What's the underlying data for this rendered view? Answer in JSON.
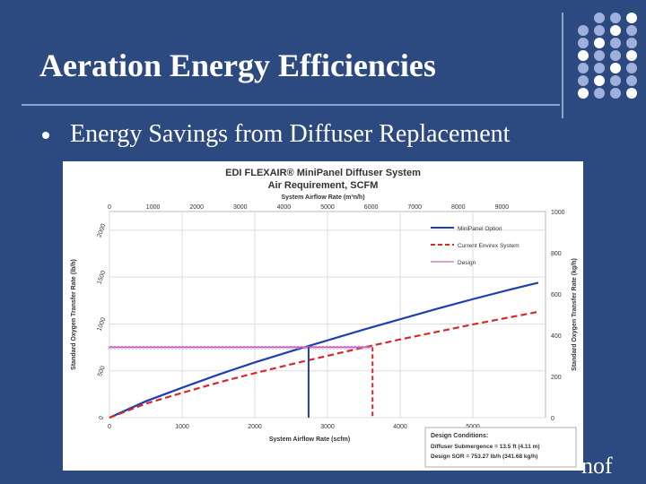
{
  "slide": {
    "title": "Aeration Energy Efficiencies",
    "bullet": "Energy Savings from Diffuser Replacement",
    "logo": "nof"
  },
  "chart_data": {
    "type": "line",
    "title": "EDI FLEXAIR® MiniPanel Diffuser System",
    "subtitle": "Air Requirement, SCFM",
    "x_bottom": {
      "label": "System Airflow Rate (scfm)",
      "range": [
        0,
        6000
      ],
      "ticks": [
        0,
        1000,
        2000,
        3000,
        4000,
        5000
      ]
    },
    "x_top": {
      "label": "System Airflow Rate (m³n/h)",
      "range": [
        0,
        10000
      ],
      "ticks": [
        0,
        1000,
        2000,
        3000,
        4000,
        5000,
        6000,
        7000,
        8000,
        9000
      ]
    },
    "y_left": {
      "label": "Standard Oxygen Transfer Rate (lb/h)",
      "range": [
        0,
        2200
      ],
      "ticks": [
        0,
        500,
        1000,
        1500,
        2000
      ]
    },
    "y_right": {
      "label": "Standard Oxygen Transfer Rate (kg/h)",
      "range": [
        0,
        1000
      ],
      "ticks": [
        0,
        200,
        400,
        600,
        800,
        1000
      ]
    },
    "series": [
      {
        "name": "MiniPanel Option",
        "color": "#1f3fb0",
        "dash": "solid",
        "x": [
          0,
          500,
          1000,
          1500,
          2000,
          2500,
          3000,
          3500,
          4000,
          4500,
          5000,
          5500,
          5900
        ],
        "y": [
          0,
          175,
          320,
          460,
          590,
          710,
          825,
          940,
          1050,
          1160,
          1265,
          1365,
          1440
        ]
      },
      {
        "name": "Current Envirex System",
        "color": "#d42a2a",
        "dash": "dashed",
        "x": [
          0,
          500,
          1000,
          1500,
          2000,
          2500,
          3000,
          3500,
          4000,
          4500,
          5000,
          5500,
          5900
        ],
        "y": [
          0,
          150,
          265,
          375,
          475,
          570,
          660,
          750,
          835,
          915,
          995,
          1070,
          1130
        ]
      },
      {
        "name": "Design",
        "color": "#c468c4",
        "dash": "marker",
        "x": [
          0,
          3600
        ],
        "y": [
          753,
          753
        ]
      }
    ],
    "markers": [
      {
        "series": "MiniPanel Option",
        "x": 2740,
        "y": 753
      },
      {
        "series": "Current Envirex System",
        "x": 3620,
        "y": 753
      }
    ],
    "annotation": {
      "heading": "Design Conditions:",
      "lines": [
        "Diffuser Submergence = 13.5 ft (4.11 m)",
        "Design SOR = 753.27 lb/h (341.68 kg/h)"
      ]
    },
    "legend_position": "top-right",
    "grid": true
  }
}
